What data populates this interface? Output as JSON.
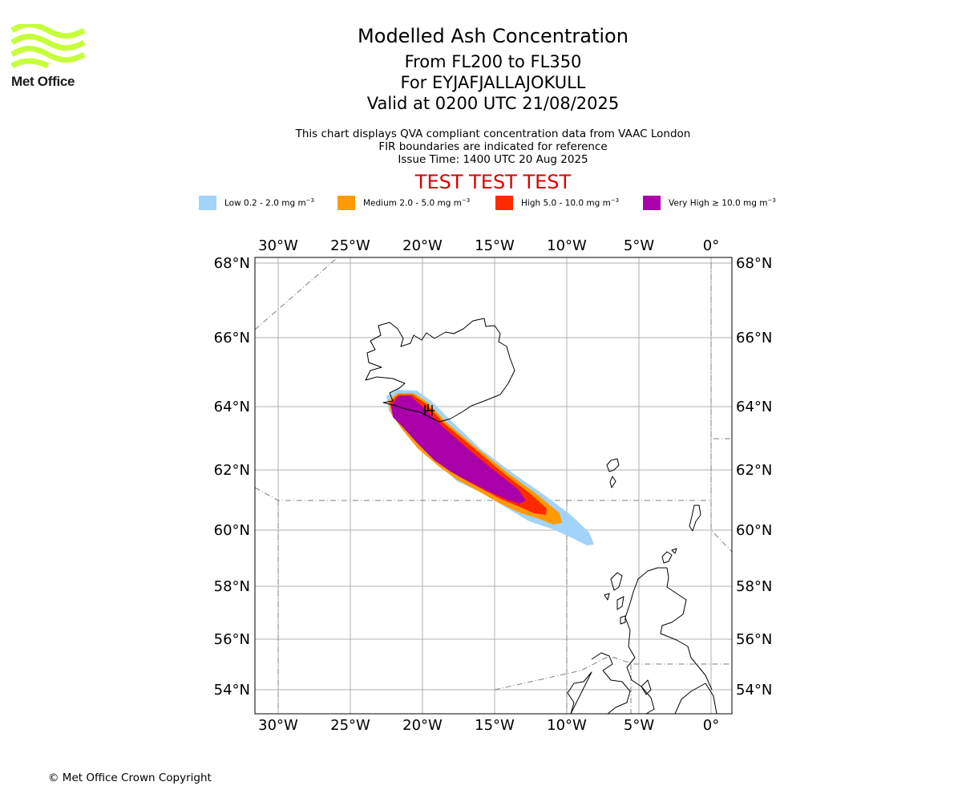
{
  "logo": {
    "text": "Met Office",
    "color": "#c6ff3a",
    "icon": "met-office-wave-logo-icon"
  },
  "titles": {
    "main": "Modelled Ash Concentration",
    "levels": "From FL200 to FL350",
    "volcano": "For EYJAFJALLAJOKULL",
    "valid": "Valid at 0200 UTC 21/08/2025"
  },
  "subtitle": {
    "line1": "This chart displays QVA compliant concentration data from VAAC London",
    "line2": "FIR boundaries are indicated for reference",
    "line3": "Issue Time: 1400 UTC 20 Aug 2025"
  },
  "test_banner": "TEST TEST TEST",
  "legend": [
    {
      "label": "Low 0.2 - 2.0 mg m",
      "sup": "−3",
      "color": "#a1d3fb"
    },
    {
      "label": "Medium 2.0 - 5.0 mg m",
      "sup": "−3",
      "color": "#ff9a03"
    },
    {
      "label": "High 5.0 - 10.0 mg m",
      "sup": "−3",
      "color": "#ff2a00"
    },
    {
      "label": "Very High  ≥  10.0 mg m",
      "sup": "−3",
      "color": "#aa00aa"
    }
  ],
  "map": {
    "lon_labels": [
      "30°W",
      "25°W",
      "20°W",
      "15°W",
      "10°W",
      "5°W",
      "0°"
    ],
    "lat_labels": [
      "68°N",
      "66°N",
      "64°N",
      "62°N",
      "60°N",
      "58°N",
      "56°N",
      "54°N"
    ],
    "volcano_marker": "volcano-marker-icon"
  },
  "copyright": "© Met Office Crown Copyright"
}
